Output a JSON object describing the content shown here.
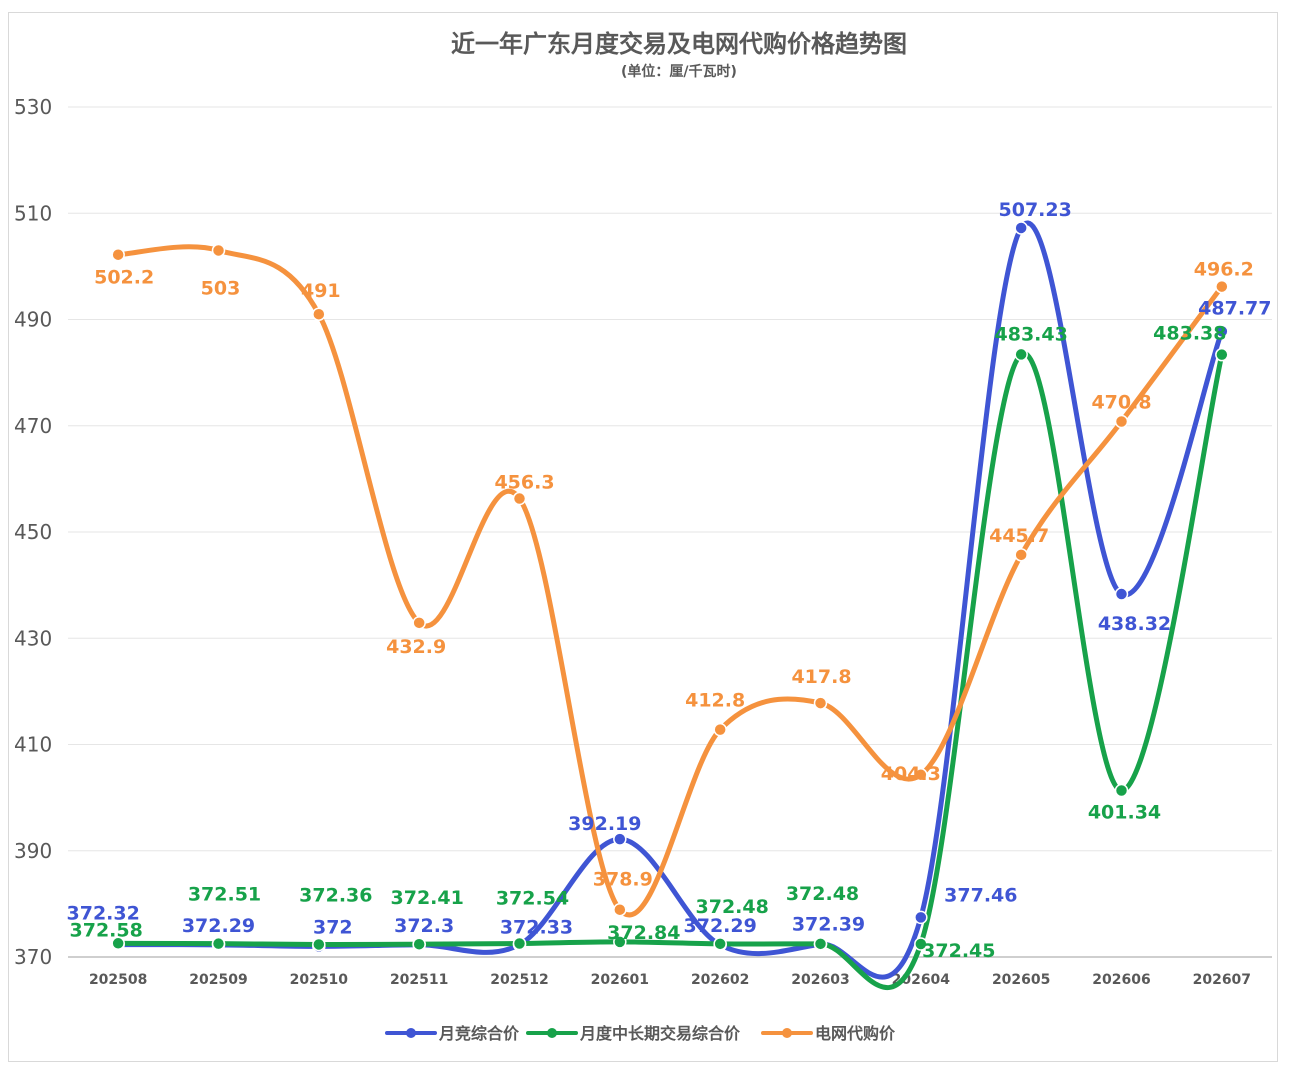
{
  "chart_data": {
    "type": "line",
    "title": "近一年广东月度交易及电网代购价格趋势图",
    "subtitle": "(单位：厘/千瓦时)",
    "categories": [
      "202508",
      "202509",
      "202510",
      "202511",
      "202512",
      "202601",
      "202602",
      "202603",
      "202604",
      "202605",
      "202606",
      "202607"
    ],
    "ylim": [
      370,
      530
    ],
    "yticks": [
      370,
      390,
      410,
      430,
      450,
      470,
      490,
      510,
      530
    ],
    "grid": true,
    "smooth": true,
    "legend_position": "bottom",
    "series": [
      {
        "name": "月竞综合价",
        "color": "#3f55d4",
        "values": [
          372.32,
          372.29,
          372,
          372.3,
          372.33,
          392.19,
          372.29,
          372.39,
          377.46,
          507.23,
          438.32,
          487.77
        ],
        "labels": [
          "372.32",
          "372.29",
          "372",
          "372.3",
          "372.33",
          "392.19",
          "372.29",
          "372.39",
          "377.46",
          "507.23",
          "438.32",
          "487.77"
        ]
      },
      {
        "name": "月度中长期交易综合价",
        "color": "#17a24a",
        "values": [
          372.58,
          372.51,
          372.36,
          372.41,
          372.54,
          372.84,
          372.48,
          372.48,
          372.45,
          483.43,
          401.34,
          483.38
        ],
        "labels": [
          "372.58",
          "372.51",
          "372.36",
          "372.41",
          "372.54",
          "372.84",
          "372.48",
          "372.48",
          "372.45",
          "483.43",
          "401.34",
          "483.38"
        ]
      },
      {
        "name": "电网代购价",
        "color": "#f5923e",
        "values": [
          502.2,
          503,
          491,
          432.9,
          456.3,
          378.9,
          412.8,
          417.8,
          404.3,
          445.7,
          470.8,
          496.2
        ],
        "labels": [
          "502.2",
          "503",
          "491",
          "432.9",
          "456.3",
          "378.9",
          "412.8",
          "417.8",
          "404.3",
          "445.7",
          "470.8",
          "496.2"
        ]
      }
    ]
  }
}
